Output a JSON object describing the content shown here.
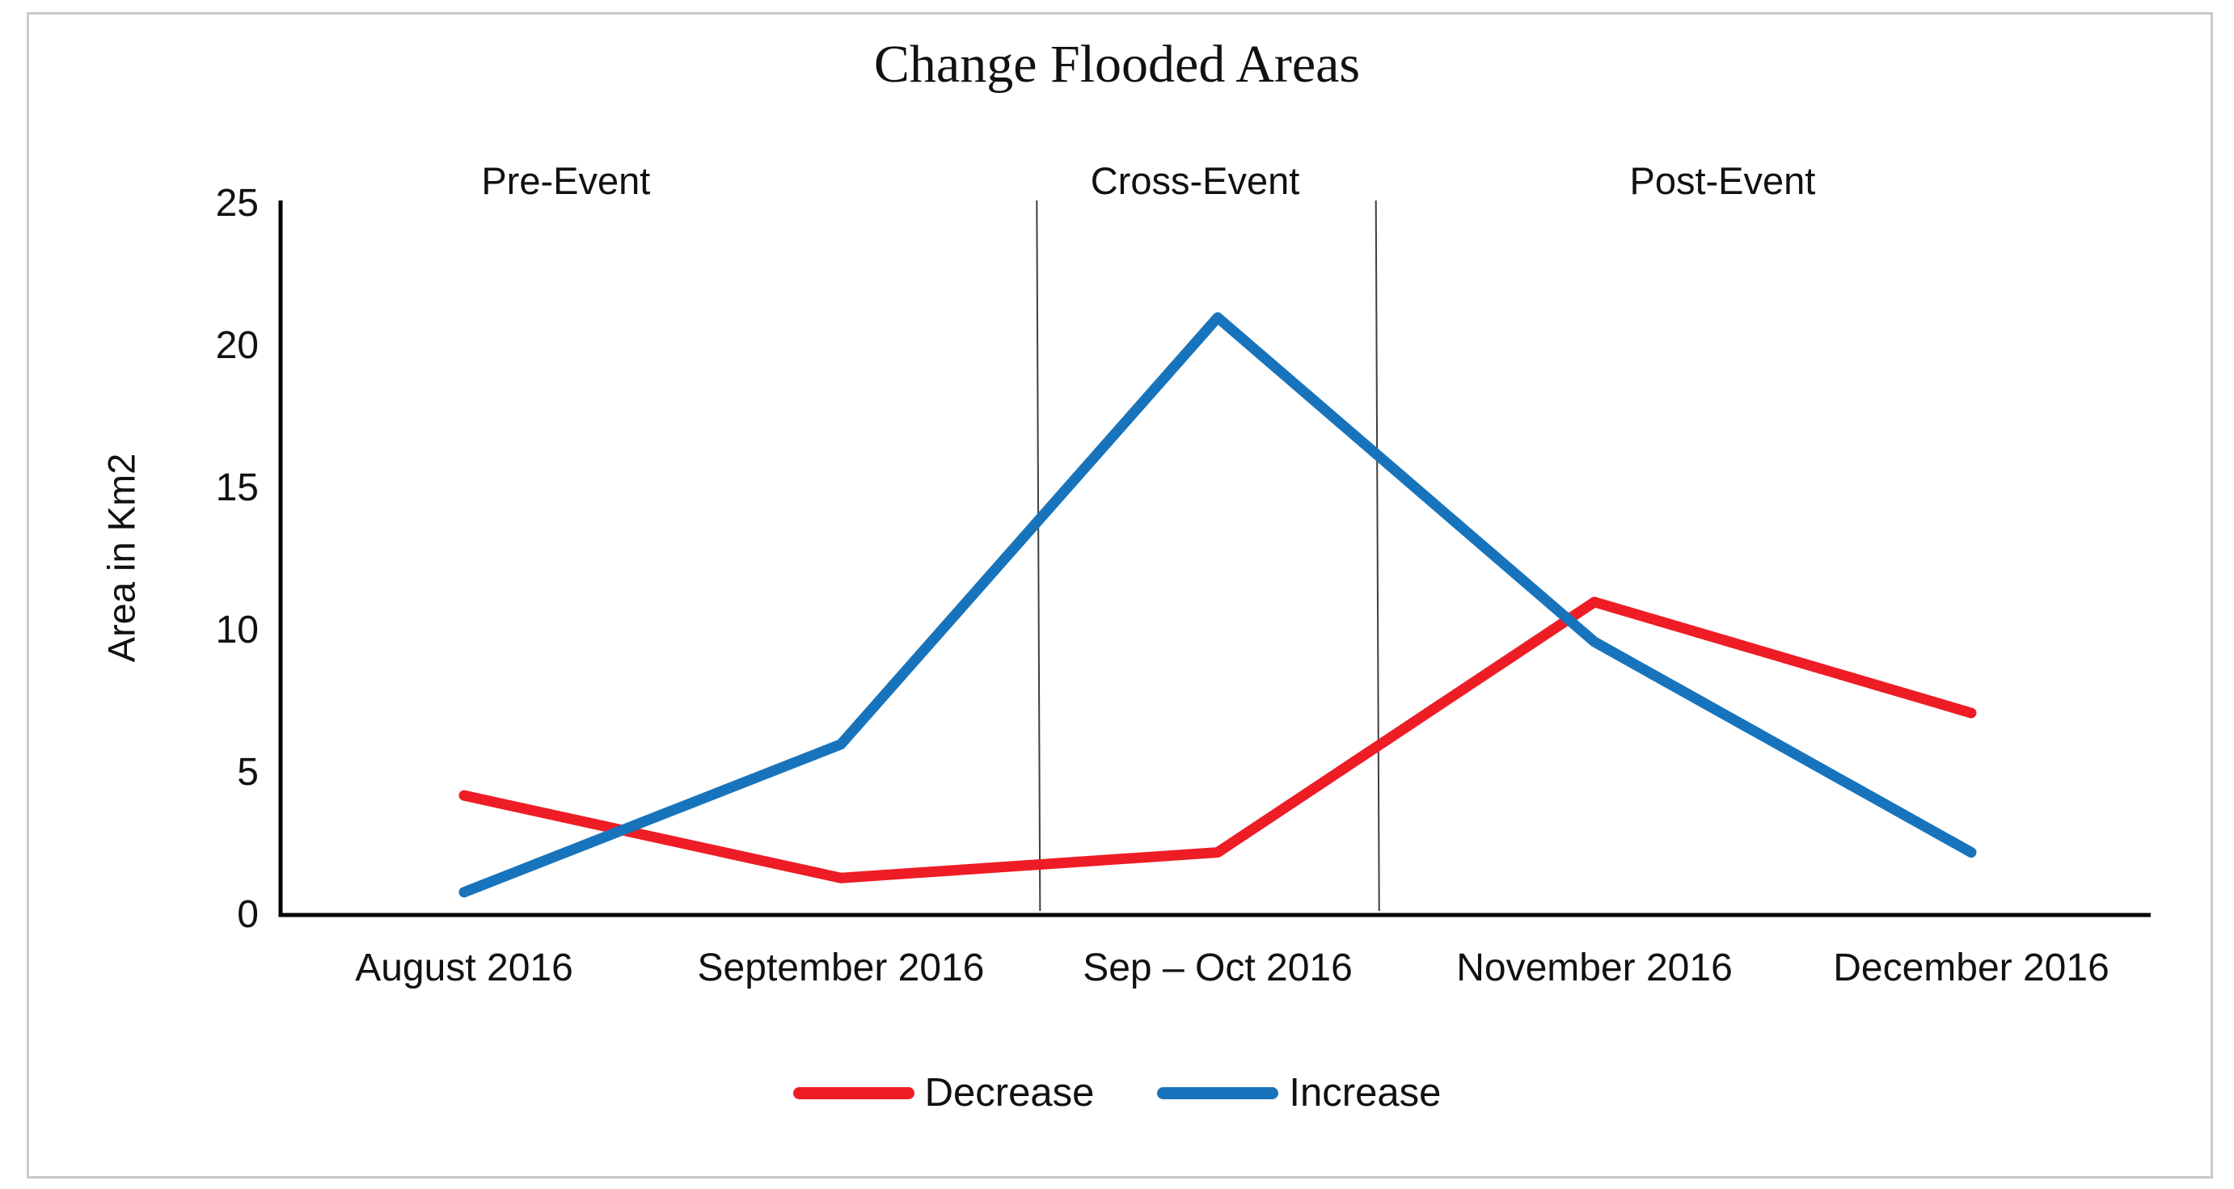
{
  "page": {
    "background": "#ffffff",
    "frame_border_color": "#c9c9c9"
  },
  "chart_data": {
    "type": "line",
    "title": "Change Flooded Areas",
    "ylabel": "Area in Km2",
    "xlabel": "",
    "categories": [
      "August 2016",
      "September 2016",
      "Sep – Oct 2016",
      "November 2016",
      "December 2016"
    ],
    "series": [
      {
        "name": "Decrease",
        "color": "#ee1c25",
        "values": [
          4.2,
          1.3,
          2.2,
          11,
          7.1
        ]
      },
      {
        "name": "Increase",
        "color": "#1774bc",
        "values": [
          0.8,
          6,
          21,
          9.6,
          2.2
        ]
      }
    ],
    "ylim": [
      0,
      25
    ],
    "yticks": [
      0,
      5,
      10,
      15,
      20,
      25
    ],
    "grid": false,
    "legend_position": "bottom",
    "annotations": [
      {
        "label": "Pre-Event",
        "x_index": 0.27
      },
      {
        "label": "Cross-Event",
        "x_index": 1.94
      },
      {
        "label": "Post-Event",
        "x_index": 3.34
      }
    ],
    "dividers": [
      {
        "x_index": 1.52
      },
      {
        "x_index": 2.42
      }
    ],
    "axis_color": "#000000",
    "divider_color": "#3f3f3f",
    "text_color": "#111111"
  }
}
